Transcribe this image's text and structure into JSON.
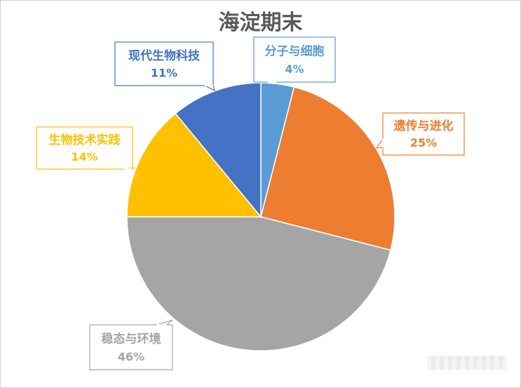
{
  "chart_data": {
    "type": "pie",
    "title": "海淀期末",
    "slices": [
      {
        "label": "分子与细胞",
        "value": 4,
        "value_label": "4%",
        "color": "#5B9BD5"
      },
      {
        "label": "遗传与进化",
        "value": 25,
        "value_label": "25%",
        "color": "#ED7D31"
      },
      {
        "label": "稳态与环境",
        "value": 46,
        "value_label": "46%",
        "color": "#A5A5A5"
      },
      {
        "label": "生物技术实践",
        "value": 14,
        "value_label": "14%",
        "color": "#FFC000"
      },
      {
        "label": "现代生物科技",
        "value": 11,
        "value_label": "11%",
        "color": "#4472C4"
      }
    ],
    "legend": "none"
  }
}
